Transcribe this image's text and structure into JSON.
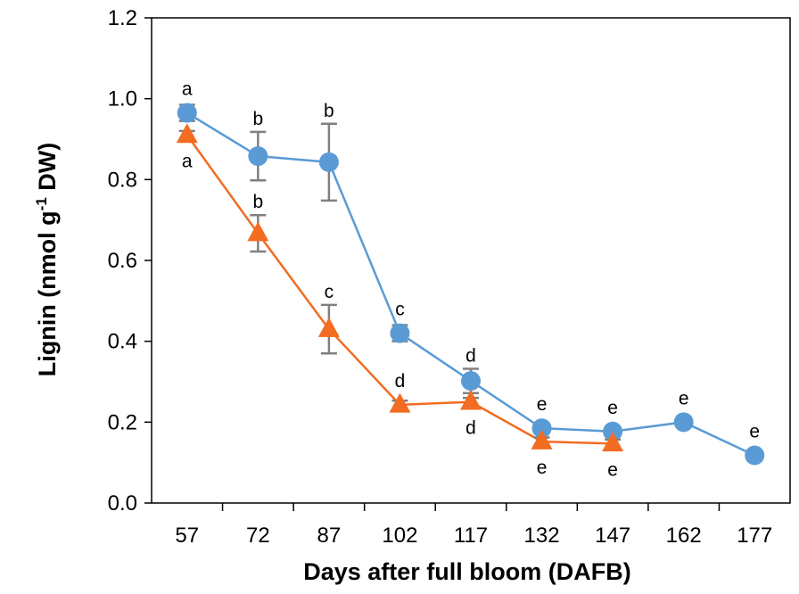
{
  "chart_data": {
    "type": "line",
    "xlabel": "Days after full bloom (DAFB)",
    "ylabel_parts": [
      "Lignin (nmol g",
      "-1",
      " DW)"
    ],
    "x": [
      57,
      72,
      87,
      102,
      117,
      132,
      147,
      162,
      177
    ],
    "x_tick_labels": [
      "57",
      "72",
      "87",
      "102",
      "117",
      "132",
      "147",
      "162",
      "177"
    ],
    "ylim": [
      0,
      1.2
    ],
    "y_ticks": [
      0,
      0.2,
      0.4,
      0.6,
      0.8,
      1.0,
      1.2
    ],
    "y_tick_labels": [
      "0.0",
      "0.2",
      "0.4",
      "0.6",
      "0.8",
      "1.0",
      "1.2"
    ],
    "grid": false,
    "legend": "none",
    "series": [
      {
        "marker": "circle",
        "color": "#5B9BD5",
        "points": [
          {
            "x": 57,
            "y": 0.965,
            "err": 0.02,
            "label": "a",
            "label_pos": "above"
          },
          {
            "x": 72,
            "y": 0.858,
            "err": 0.06,
            "label": "b",
            "label_pos": "above"
          },
          {
            "x": 87,
            "y": 0.843,
            "err": 0.095,
            "label": "b",
            "label_pos": "above"
          },
          {
            "x": 102,
            "y": 0.42,
            "err": 0.02,
            "label": "c",
            "label_pos": "above"
          },
          {
            "x": 117,
            "y": 0.302,
            "err": 0.03,
            "label": "d",
            "label_pos": "above"
          },
          {
            "x": 132,
            "y": 0.185,
            "err": 0.012,
            "label": "e",
            "label_pos": "above"
          },
          {
            "x": 147,
            "y": 0.177,
            "err": 0.012,
            "label": "e",
            "label_pos": "above"
          },
          {
            "x": 162,
            "y": 0.2,
            "err": 0.012,
            "label": "e",
            "label_pos": "above"
          },
          {
            "x": 177,
            "y": 0.118,
            "err": 0.012,
            "label": "e",
            "label_pos": "above"
          }
        ]
      },
      {
        "marker": "triangle",
        "color": "#F26C21",
        "points": [
          {
            "x": 57,
            "y": 0.91,
            "err": 0.01,
            "label": "a",
            "label_pos": "below"
          },
          {
            "x": 72,
            "y": 0.667,
            "err": 0.045,
            "label": "b",
            "label_pos": "above"
          },
          {
            "x": 87,
            "y": 0.43,
            "err": 0.06,
            "label": "c",
            "label_pos": "above"
          },
          {
            "x": 102,
            "y": 0.243,
            "err": 0.01,
            "label": "d",
            "label_pos": "above"
          },
          {
            "x": 117,
            "y": 0.25,
            "err": 0.01,
            "label": "d",
            "label_pos": "below"
          },
          {
            "x": 132,
            "y": 0.152,
            "err": 0.01,
            "label": "e",
            "label_pos": "below"
          },
          {
            "x": 147,
            "y": 0.147,
            "err": 0.01,
            "label": "e",
            "label_pos": "below"
          }
        ]
      }
    ]
  }
}
